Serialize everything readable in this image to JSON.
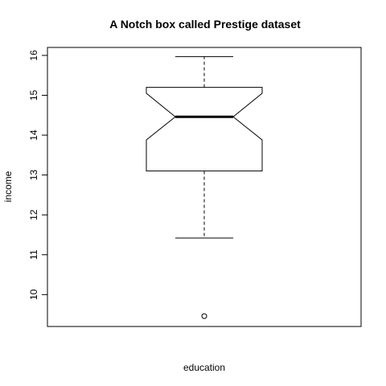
{
  "chart_data": {
    "type": "boxplot",
    "notch": true,
    "title": "A Notch box called Prestige dataset",
    "xlabel": "education",
    "ylabel": "income",
    "ylim": [
      9.2,
      16.2
    ],
    "yticks": [
      10,
      11,
      12,
      13,
      14,
      15,
      16
    ],
    "ytick_labels": [
      "10",
      "11",
      "12",
      "13",
      "14",
      "15",
      "16"
    ],
    "grid": false,
    "box": {
      "whisker_low": 11.42,
      "q1": 13.1,
      "median": 14.46,
      "q3": 15.2,
      "whisker_high": 15.97,
      "notch_low": 13.88,
      "notch_high": 15.05,
      "outliers": [
        9.46
      ]
    }
  }
}
